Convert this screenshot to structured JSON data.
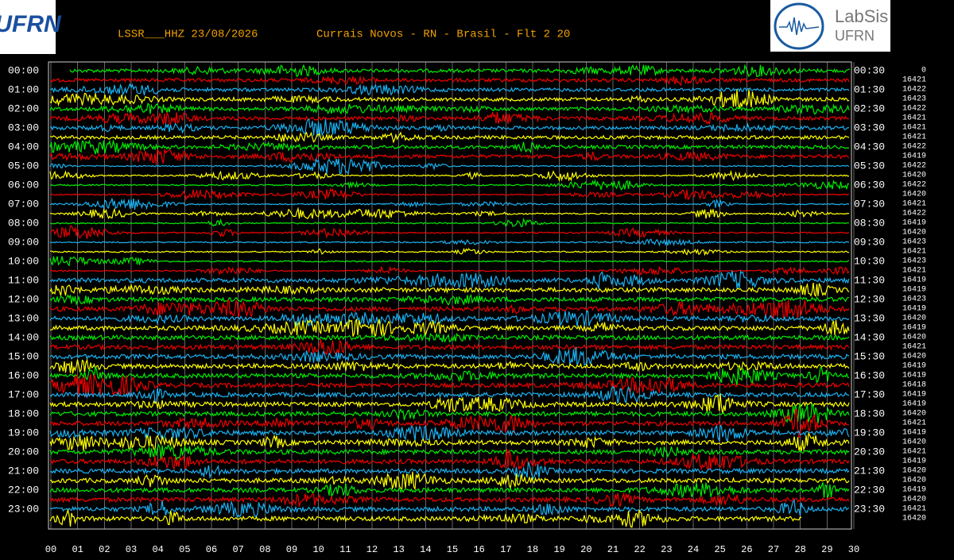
{
  "header": {
    "station": "LSSR___HHZ 23/08/2026",
    "location": "Currais Novos - RN - Brasil - Flt 2 20"
  },
  "logos": {
    "left": "UFRN",
    "right_title": "LabSis",
    "right_sub": "UFRN"
  },
  "left_labels": [
    "00:00",
    "01:00",
    "02:00",
    "03:00",
    "04:00",
    "05:00",
    "06:00",
    "07:00",
    "08:00",
    "09:00",
    "10:00",
    "11:00",
    "12:00",
    "13:00",
    "14:00",
    "15:00",
    "16:00",
    "17:00",
    "18:00",
    "19:00",
    "20:00",
    "21:00",
    "22:00",
    "23:00"
  ],
  "right_labels": [
    "00:30",
    "01:30",
    "02:30",
    "03:30",
    "04:30",
    "05:30",
    "06:30",
    "07:30",
    "08:30",
    "09:30",
    "10:30",
    "11:30",
    "12:30",
    "13:30",
    "14:30",
    "15:30",
    "16:30",
    "17:30",
    "18:30",
    "19:30",
    "20:30",
    "21:30",
    "22:30",
    "23:30"
  ],
  "counts": [
    "0",
    "16421",
    "16422",
    "16423",
    "16422",
    "16421",
    "16421",
    "16421",
    "16422",
    "16419",
    "16422",
    "16420",
    "16422",
    "16420",
    "16421",
    "16422",
    "16419",
    "16420",
    "16423",
    "16421",
    "16423",
    "16421",
    "16419",
    "16419",
    "16423",
    "16419",
    "16420",
    "16419",
    "16420",
    "16421",
    "16420",
    "16419",
    "16419",
    "16418",
    "16419",
    "16419",
    "16420",
    "16421",
    "16419",
    "16420",
    "16421",
    "16419",
    "16420",
    "16420",
    "16419",
    "16420",
    "16421",
    "16420"
  ],
  "x_labels": [
    "00",
    "01",
    "02",
    "03",
    "04",
    "05",
    "06",
    "07",
    "08",
    "09",
    "10",
    "11",
    "12",
    "13",
    "14",
    "15",
    "16",
    "17",
    "18",
    "19",
    "20",
    "21",
    "22",
    "23",
    "24",
    "25",
    "26",
    "27",
    "28",
    "29",
    "30"
  ]
}
